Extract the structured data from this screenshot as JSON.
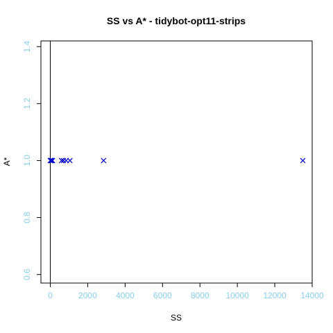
{
  "chart_data": {
    "type": "scatter",
    "title": "SS vs A* - tidybot-opt11-strips",
    "xlabel": "SS",
    "ylabel": "A*",
    "xlim": [
      -500,
      14000
    ],
    "ylim": [
      0.57,
      1.42
    ],
    "xticks": [
      0,
      2000,
      4000,
      6000,
      8000,
      10000,
      12000,
      14000
    ],
    "yticks": [
      0.6,
      0.8,
      1.0,
      1.2,
      1.4
    ],
    "xtick_labels": [
      "0",
      "2000",
      "4000",
      "6000",
      "8000",
      "10000",
      "12000",
      "14000"
    ],
    "ytick_labels": [
      "0.6",
      "0.8",
      "1.0",
      "1.2",
      "1.4"
    ],
    "reference_vline_x": 0,
    "marker": "x",
    "marker_color": "#0000cd",
    "tick_label_color": "#87ceeb",
    "grid": false,
    "points": [
      {
        "x": 0,
        "y": 1.0
      },
      {
        "x": 20,
        "y": 1.0
      },
      {
        "x": 50,
        "y": 1.0
      },
      {
        "x": 80,
        "y": 1.0
      },
      {
        "x": 120,
        "y": 1.0
      },
      {
        "x": 600,
        "y": 1.0
      },
      {
        "x": 700,
        "y": 1.0
      },
      {
        "x": 850,
        "y": 1.0
      },
      {
        "x": 1050,
        "y": 1.0
      },
      {
        "x": 2850,
        "y": 1.0
      },
      {
        "x": 13500,
        "y": 1.0
      }
    ]
  }
}
